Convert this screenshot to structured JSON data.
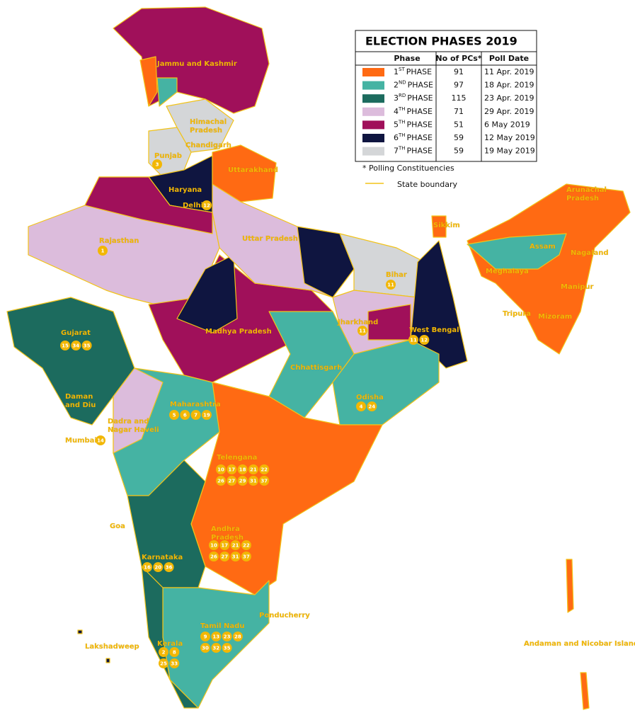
{
  "legend": {
    "title": "ELECTION PHASES 2019",
    "headers": [
      "Phase",
      "No of PCs*",
      "Poll Date"
    ],
    "rows": [
      {
        "num": "1",
        "sup": "ST",
        "phase": "PHASE",
        "pcs": 91,
        "date": "11 Apr. 2019",
        "color": "#ff6a13"
      },
      {
        "num": "2",
        "sup": "ND",
        "phase": "PHASE",
        "pcs": 97,
        "date": "18 Apr. 2019",
        "color": "#45b3a3"
      },
      {
        "num": "3",
        "sup": "RD",
        "phase": "PHASE",
        "pcs": 115,
        "date": "23 Apr. 2019",
        "color": "#1c6b5e"
      },
      {
        "num": "4",
        "sup": "TH",
        "phase": "PHASE",
        "pcs": 71,
        "date": "29 Apr. 2019",
        "color": "#dcbcdc"
      },
      {
        "num": "5",
        "sup": "TH",
        "phase": "PHASE",
        "pcs": 51,
        "date": "6 May 2019",
        "color": "#a0105a"
      },
      {
        "num": "6",
        "sup": "TH",
        "phase": "PHASE",
        "pcs": 59,
        "date": "12 May 2019",
        "color": "#0f1540"
      },
      {
        "num": "7",
        "sup": "TH",
        "phase": "PHASE",
        "pcs": 59,
        "date": "19 May 2019",
        "color": "#d4d6d8"
      }
    ],
    "footnote": "* Polling Constituencies",
    "boundary": "State boundary"
  },
  "states": [
    {
      "lines": [
        "Jammu and Kashmir"
      ],
      "badges": []
    },
    {
      "lines": [
        "Himachal",
        "Pradesh"
      ],
      "badges": []
    },
    {
      "lines": [
        "Chandigarh"
      ],
      "badges": []
    },
    {
      "lines": [
        "Punjab"
      ],
      "badges": [
        [
          3
        ]
      ]
    },
    {
      "lines": [
        "Uttarakhand"
      ],
      "badges": []
    },
    {
      "lines": [
        "Haryana"
      ],
      "badges": []
    },
    {
      "lines": [
        "Delhi"
      ],
      "badges": [
        [
          12
        ]
      ]
    },
    {
      "lines": [
        "Rajasthan"
      ],
      "badges": [
        [
          1
        ]
      ]
    },
    {
      "lines": [
        "Uttar Pradesh"
      ],
      "badges": []
    },
    {
      "lines": [
        "Sikkim"
      ],
      "badges": []
    },
    {
      "lines": [
        "Arunachal",
        "Pradesh"
      ],
      "badges": []
    },
    {
      "lines": [
        "Assam"
      ],
      "badges": []
    },
    {
      "lines": [
        "Nagaland"
      ],
      "badges": []
    },
    {
      "lines": [
        "Meghalaya"
      ],
      "badges": []
    },
    {
      "lines": [
        "Manipur"
      ],
      "badges": []
    },
    {
      "lines": [
        "Tripura"
      ],
      "badges": []
    },
    {
      "lines": [
        "Mizoram"
      ],
      "badges": []
    },
    {
      "lines": [
        "Bihar"
      ],
      "badges": [
        [
          11
        ]
      ]
    },
    {
      "lines": [
        "Jharkhand"
      ],
      "badges": [
        [
          11
        ]
      ]
    },
    {
      "lines": [
        "West Bengal"
      ],
      "badges": [
        [
          11,
          12
        ]
      ]
    },
    {
      "lines": [
        "Gujarat"
      ],
      "badges": [
        [
          15,
          34,
          35
        ]
      ]
    },
    {
      "lines": [
        "Madhya Pradesh"
      ],
      "badges": []
    },
    {
      "lines": [
        "Chhattisgarh"
      ],
      "badges": []
    },
    {
      "lines": [
        "Odisha"
      ],
      "badges": [
        [
          4,
          24
        ]
      ]
    },
    {
      "lines": [
        "Daman",
        "and Diu"
      ],
      "badges": []
    },
    {
      "lines": [
        "Maharashtra"
      ],
      "badges": [
        [
          5,
          6,
          7,
          19
        ]
      ]
    },
    {
      "lines": [
        "Dadra and",
        "Nagar Haveli"
      ],
      "badges": []
    },
    {
      "lines": [
        "Mumbai"
      ],
      "badges": [
        [
          14
        ]
      ]
    },
    {
      "lines": [
        "Telengana"
      ],
      "badges": [
        [
          10,
          17,
          18,
          21,
          22
        ],
        [
          26,
          27,
          29,
          31,
          37
        ]
      ]
    },
    {
      "lines": [
        "Goa"
      ],
      "badges": []
    },
    {
      "lines": [
        "Andhra",
        "Pradesh"
      ],
      "badges": [
        [
          10,
          17,
          21,
          22
        ],
        [
          26,
          27,
          31,
          37
        ]
      ]
    },
    {
      "lines": [
        "Karnataka"
      ],
      "badges": [
        [
          16,
          20,
          36
        ]
      ]
    },
    {
      "lines": [
        "Ponducherry"
      ],
      "badges": []
    },
    {
      "lines": [
        "Tamil Nadu"
      ],
      "badges": [
        [
          9,
          13,
          23,
          28
        ],
        [
          30,
          32,
          35
        ]
      ]
    },
    {
      "lines": [
        "Lakshadweep"
      ],
      "badges": []
    },
    {
      "lines": [
        "Kerala"
      ],
      "badges": [
        [
          2,
          8
        ],
        [
          25,
          33
        ]
      ]
    },
    {
      "lines": [
        "Andaman and Nicobar Islands"
      ],
      "badges": []
    }
  ]
}
